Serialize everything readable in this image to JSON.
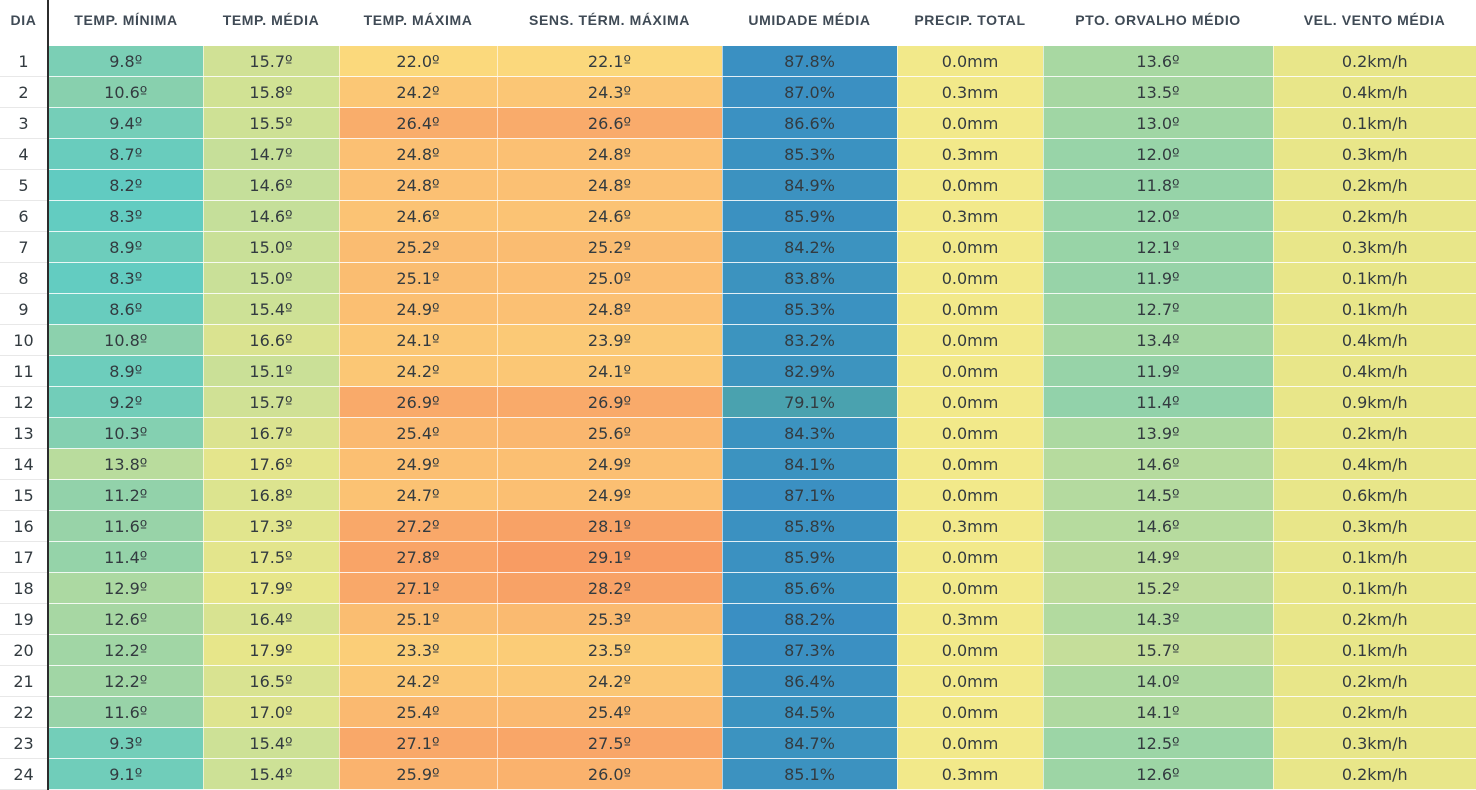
{
  "columns": [
    {
      "key": "dia",
      "label": "DIA"
    },
    {
      "key": "tmin",
      "label": "TEMP. MÍNIMA"
    },
    {
      "key": "tmed",
      "label": "TEMP. MÉDIA"
    },
    {
      "key": "tmax",
      "label": "TEMP. MÁXIMA"
    },
    {
      "key": "sens",
      "label": "SENS. TÉRM. MÁXIMA"
    },
    {
      "key": "umid",
      "label": "UMIDADE MÉDIA"
    },
    {
      "key": "prec",
      "label": "PRECIP. TOTAL"
    },
    {
      "key": "orv",
      "label": "PTO. ORVALHO MÉDIO"
    },
    {
      "key": "vento",
      "label": "VEL. VENTO MÉDIA"
    }
  ],
  "rows": [
    {
      "dia": "1",
      "tmin": "9.8º",
      "tmed": "15.7º",
      "tmax": "22.0º",
      "sens": "22.1º",
      "umid": "87.8%",
      "prec": "0.0mm",
      "orv": "13.6º",
      "vento": "0.2km/h"
    },
    {
      "dia": "2",
      "tmin": "10.6º",
      "tmed": "15.8º",
      "tmax": "24.2º",
      "sens": "24.3º",
      "umid": "87.0%",
      "prec": "0.3mm",
      "orv": "13.5º",
      "vento": "0.4km/h"
    },
    {
      "dia": "3",
      "tmin": "9.4º",
      "tmed": "15.5º",
      "tmax": "26.4º",
      "sens": "26.6º",
      "umid": "86.6%",
      "prec": "0.0mm",
      "orv": "13.0º",
      "vento": "0.1km/h"
    },
    {
      "dia": "4",
      "tmin": "8.7º",
      "tmed": "14.7º",
      "tmax": "24.8º",
      "sens": "24.8º",
      "umid": "85.3%",
      "prec": "0.3mm",
      "orv": "12.0º",
      "vento": "0.3km/h"
    },
    {
      "dia": "5",
      "tmin": "8.2º",
      "tmed": "14.6º",
      "tmax": "24.8º",
      "sens": "24.8º",
      "umid": "84.9%",
      "prec": "0.0mm",
      "orv": "11.8º",
      "vento": "0.2km/h"
    },
    {
      "dia": "6",
      "tmin": "8.3º",
      "tmed": "14.6º",
      "tmax": "24.6º",
      "sens": "24.6º",
      "umid": "85.9%",
      "prec": "0.3mm",
      "orv": "12.0º",
      "vento": "0.2km/h"
    },
    {
      "dia": "7",
      "tmin": "8.9º",
      "tmed": "15.0º",
      "tmax": "25.2º",
      "sens": "25.2º",
      "umid": "84.2%",
      "prec": "0.0mm",
      "orv": "12.1º",
      "vento": "0.3km/h"
    },
    {
      "dia": "8",
      "tmin": "8.3º",
      "tmed": "15.0º",
      "tmax": "25.1º",
      "sens": "25.0º",
      "umid": "83.8%",
      "prec": "0.0mm",
      "orv": "11.9º",
      "vento": "0.1km/h"
    },
    {
      "dia": "9",
      "tmin": "8.6º",
      "tmed": "15.4º",
      "tmax": "24.9º",
      "sens": "24.8º",
      "umid": "85.3%",
      "prec": "0.0mm",
      "orv": "12.7º",
      "vento": "0.1km/h"
    },
    {
      "dia": "10",
      "tmin": "10.8º",
      "tmed": "16.6º",
      "tmax": "24.1º",
      "sens": "23.9º",
      "umid": "83.2%",
      "prec": "0.0mm",
      "orv": "13.4º",
      "vento": "0.4km/h"
    },
    {
      "dia": "11",
      "tmin": "8.9º",
      "tmed": "15.1º",
      "tmax": "24.2º",
      "sens": "24.1º",
      "umid": "82.9%",
      "prec": "0.0mm",
      "orv": "11.9º",
      "vento": "0.4km/h"
    },
    {
      "dia": "12",
      "tmin": "9.2º",
      "tmed": "15.7º",
      "tmax": "26.9º",
      "sens": "26.9º",
      "umid": "79.1%",
      "prec": "0.0mm",
      "orv": "11.4º",
      "vento": "0.9km/h"
    },
    {
      "dia": "13",
      "tmin": "10.3º",
      "tmed": "16.7º",
      "tmax": "25.4º",
      "sens": "25.6º",
      "umid": "84.3%",
      "prec": "0.0mm",
      "orv": "13.9º",
      "vento": "0.2km/h"
    },
    {
      "dia": "14",
      "tmin": "13.8º",
      "tmed": "17.6º",
      "tmax": "24.9º",
      "sens": "24.9º",
      "umid": "84.1%",
      "prec": "0.0mm",
      "orv": "14.6º",
      "vento": "0.4km/h"
    },
    {
      "dia": "15",
      "tmin": "11.2º",
      "tmed": "16.8º",
      "tmax": "24.7º",
      "sens": "24.9º",
      "umid": "87.1%",
      "prec": "0.0mm",
      "orv": "14.5º",
      "vento": "0.6km/h"
    },
    {
      "dia": "16",
      "tmin": "11.6º",
      "tmed": "17.3º",
      "tmax": "27.2º",
      "sens": "28.1º",
      "umid": "85.8%",
      "prec": "0.3mm",
      "orv": "14.6º",
      "vento": "0.3km/h"
    },
    {
      "dia": "17",
      "tmin": "11.4º",
      "tmed": "17.5º",
      "tmax": "27.8º",
      "sens": "29.1º",
      "umid": "85.9%",
      "prec": "0.0mm",
      "orv": "14.9º",
      "vento": "0.1km/h"
    },
    {
      "dia": "18",
      "tmin": "12.9º",
      "tmed": "17.9º",
      "tmax": "27.1º",
      "sens": "28.2º",
      "umid": "85.6%",
      "prec": "0.0mm",
      "orv": "15.2º",
      "vento": "0.1km/h"
    },
    {
      "dia": "19",
      "tmin": "12.6º",
      "tmed": "16.4º",
      "tmax": "25.1º",
      "sens": "25.3º",
      "umid": "88.2%",
      "prec": "0.3mm",
      "orv": "14.3º",
      "vento": "0.2km/h"
    },
    {
      "dia": "20",
      "tmin": "12.2º",
      "tmed": "17.9º",
      "tmax": "23.3º",
      "sens": "23.5º",
      "umid": "87.3%",
      "prec": "0.0mm",
      "orv": "15.7º",
      "vento": "0.1km/h"
    },
    {
      "dia": "21",
      "tmin": "12.2º",
      "tmed": "16.5º",
      "tmax": "24.2º",
      "sens": "24.2º",
      "umid": "86.4%",
      "prec": "0.0mm",
      "orv": "14.0º",
      "vento": "0.2km/h"
    },
    {
      "dia": "22",
      "tmin": "11.6º",
      "tmed": "17.0º",
      "tmax": "25.4º",
      "sens": "25.4º",
      "umid": "84.5%",
      "prec": "0.0mm",
      "orv": "14.1º",
      "vento": "0.2km/h"
    },
    {
      "dia": "23",
      "tmin": "9.3º",
      "tmed": "15.4º",
      "tmax": "27.1º",
      "sens": "27.5º",
      "umid": "84.7%",
      "prec": "0.0mm",
      "orv": "12.5º",
      "vento": "0.3km/h"
    },
    {
      "dia": "24",
      "tmin": "9.1º",
      "tmed": "15.4º",
      "tmax": "25.9º",
      "sens": "26.0º",
      "umid": "85.1%",
      "prec": "0.3mm",
      "orv": "12.6º",
      "vento": "0.2km/h"
    }
  ],
  "colors": {
    "teal": "#5ecbc3",
    "green": "#9dd5a6",
    "yellow": "#f0e689",
    "orange": "#f9a66a",
    "blue_dark": "#3a8fc3",
    "blue_light": "#4fa9b5"
  }
}
